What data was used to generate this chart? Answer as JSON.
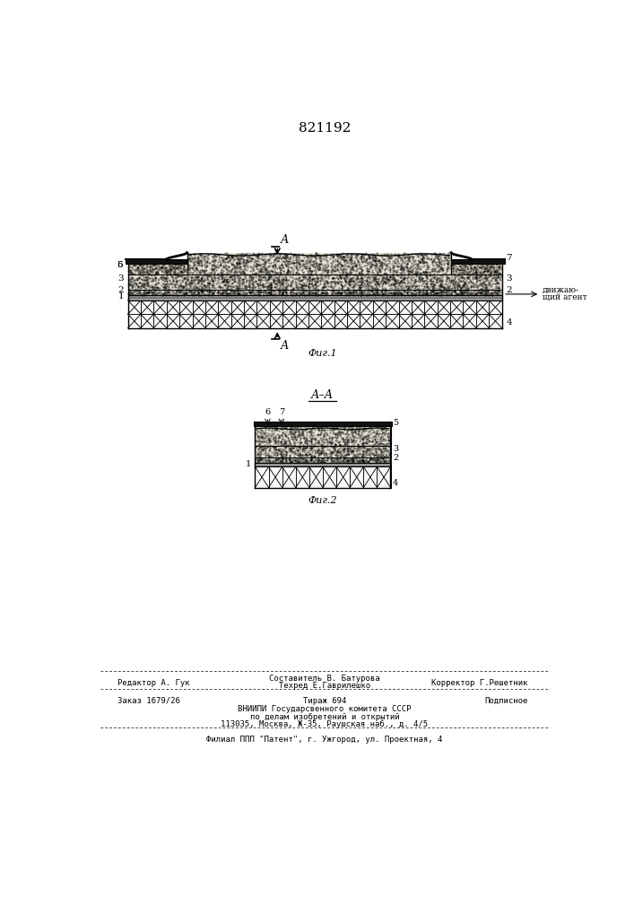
{
  "title": "821192",
  "background_color": "#ffffff",
  "footer_line1": "Редактор А. Гук",
  "footer_comp": "Составитель В. Батурова",
  "footer_tech": "Техред Е.Гаврилешко",
  "footer_corr": "Корректор Г.Решетник",
  "footer_order": "Заказ 1679/26",
  "footer_tiraz": "Тираж 694",
  "footer_podp": "Подписное",
  "footer_vniip": "ВНИИПИ Государсвенного комитета СССР",
  "footer_po": "по делам изобретений и открытий",
  "footer_addr": "113035, Москва, Ж-35, Раушская наб., д. 4/5",
  "footer_filial": "Филиал ППП \"Патент\", г. Ужгород, ул. Проектная, 4"
}
